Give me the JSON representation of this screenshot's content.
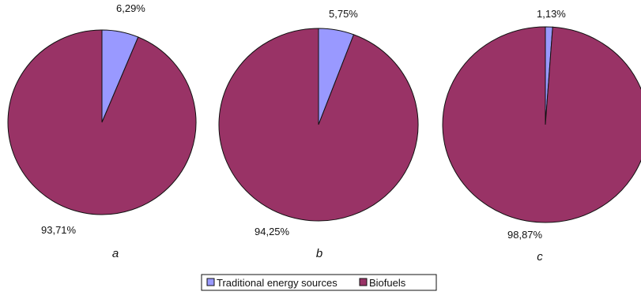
{
  "legend": {
    "items": [
      {
        "label": "Traditional energy sources",
        "color": "#9999ff"
      },
      {
        "label": "Biofuels",
        "color": "#993366"
      }
    ],
    "position": "bottom-center"
  },
  "chart_data": [
    {
      "type": "pie",
      "title": "a",
      "categories": [
        "Traditional energy sources",
        "Biofuels"
      ],
      "values": [
        6.29,
        93.71
      ],
      "data_labels": [
        "6,29%",
        "93,71%"
      ],
      "colors": [
        "#9999ff",
        "#993366"
      ]
    },
    {
      "type": "pie",
      "title": "b",
      "categories": [
        "Traditional energy sources",
        "Biofuels"
      ],
      "values": [
        5.75,
        94.25
      ],
      "data_labels": [
        "5,75%",
        "94,25%"
      ],
      "colors": [
        "#9999ff",
        "#993366"
      ]
    },
    {
      "type": "pie",
      "title": "c",
      "categories": [
        "Traditional energy sources",
        "Biofuels"
      ],
      "values": [
        1.13,
        98.87
      ],
      "data_labels": [
        "1,13%",
        "98,87%"
      ],
      "colors": [
        "#9999ff",
        "#993366"
      ]
    }
  ]
}
